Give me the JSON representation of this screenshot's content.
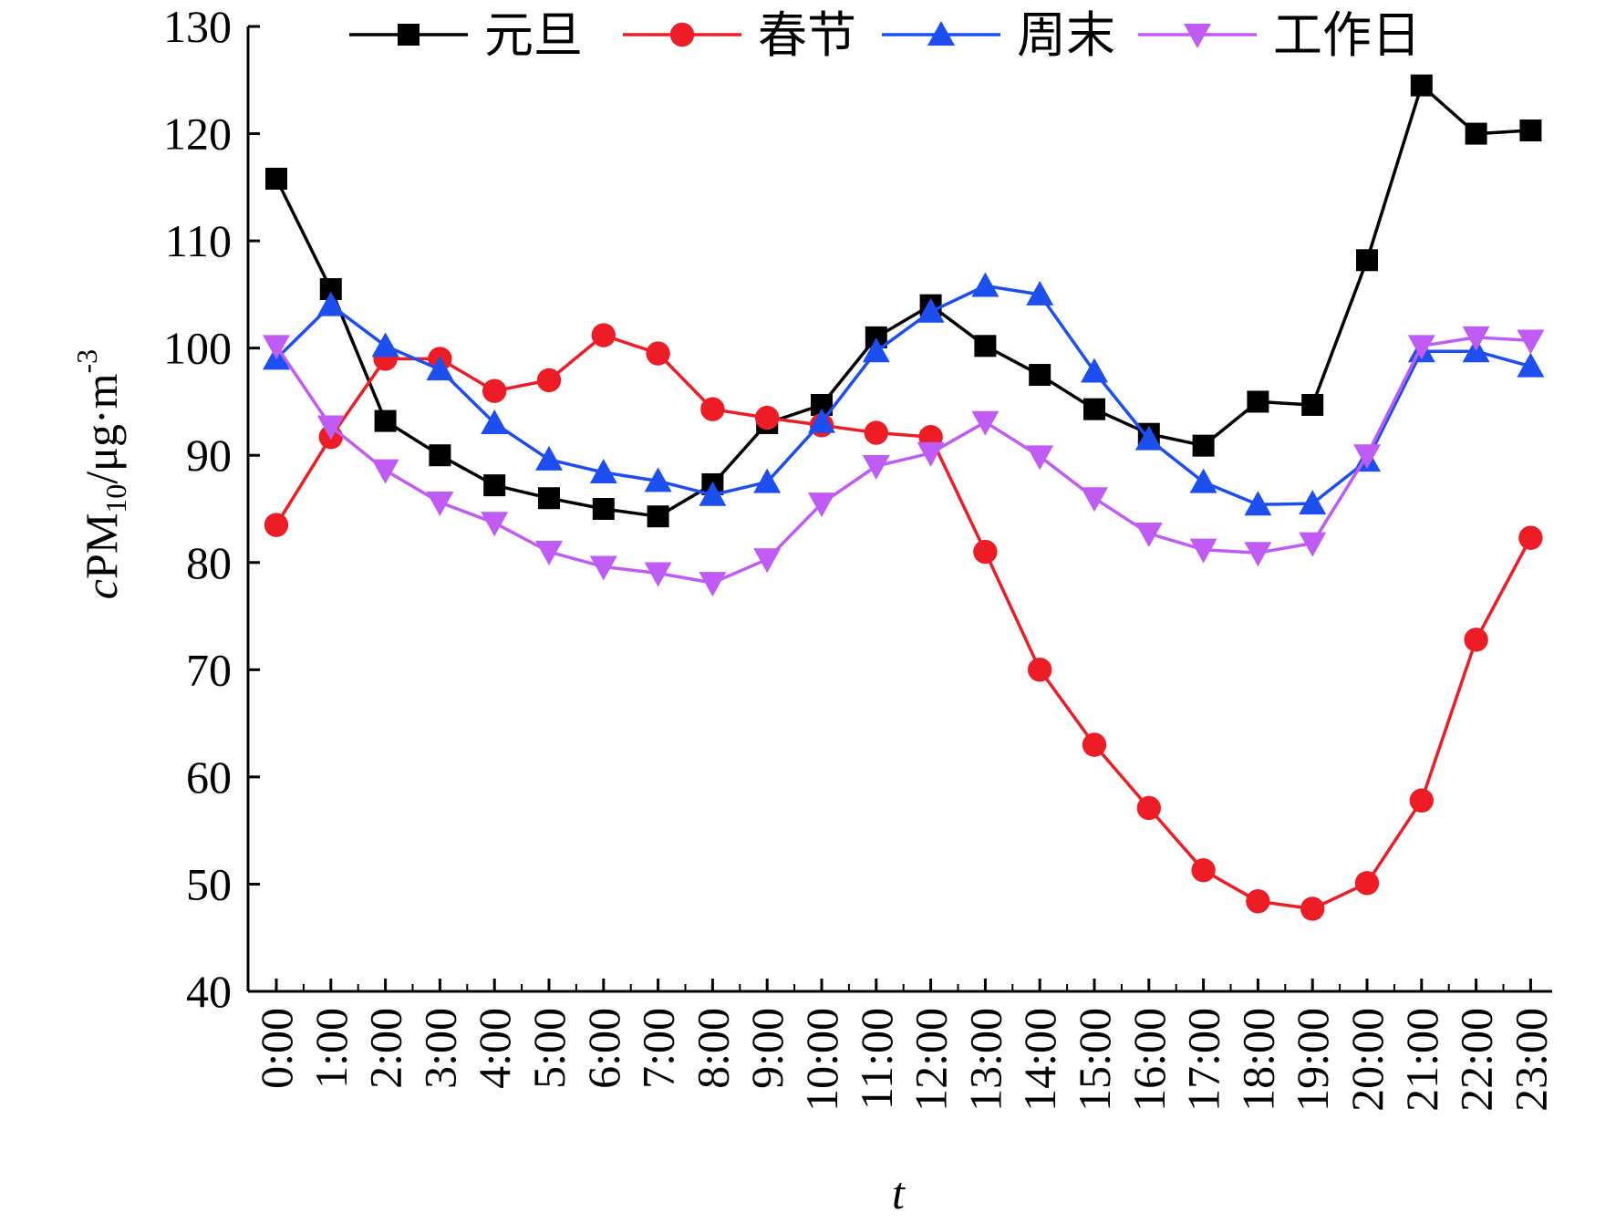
{
  "chart_data": {
    "type": "line",
    "title": "",
    "xlabel": "t",
    "ylabel_parts": {
      "prefix": "c",
      "name": "PM",
      "sub": "10",
      "unit": "/μg·m",
      "sup": "-3"
    },
    "categories": [
      "0:00",
      "1:00",
      "2:00",
      "3:00",
      "4:00",
      "5:00",
      "6:00",
      "7:00",
      "8:00",
      "9:00",
      "10:00",
      "11:00",
      "12:00",
      "13:00",
      "14:00",
      "15:00",
      "16:00",
      "17:00",
      "18:00",
      "19:00",
      "20:00",
      "21:00",
      "22:00",
      "23:00"
    ],
    "ylim": [
      40,
      130
    ],
    "yticks": [
      40,
      50,
      60,
      70,
      80,
      90,
      100,
      110,
      120,
      130
    ],
    "grid": false,
    "legend_position": "top",
    "series": [
      {
        "name": "元旦",
        "color": "#000000",
        "marker": "square",
        "values": [
          115.8,
          105.5,
          93.2,
          90.0,
          87.2,
          86.0,
          85.0,
          84.3,
          87.3,
          93.0,
          94.7,
          101.0,
          104.0,
          100.2,
          97.5,
          94.3,
          92.0,
          90.9,
          95.0,
          94.7,
          108.2,
          124.5,
          120.0,
          120.3
        ]
      },
      {
        "name": "春节",
        "color": "#ee1c25",
        "marker": "circle",
        "values": [
          83.5,
          91.7,
          99.0,
          99.0,
          96.0,
          97.0,
          101.2,
          99.5,
          94.3,
          93.5,
          92.8,
          92.1,
          91.7,
          81.0,
          70.0,
          63.0,
          57.1,
          51.3,
          48.4,
          47.7,
          50.1,
          57.8,
          72.8,
          82.3
        ]
      },
      {
        "name": "周末",
        "color": "#1c4ef0",
        "marker": "triangle-up",
        "values": [
          99.0,
          104.0,
          100.2,
          98.0,
          93.0,
          89.6,
          88.4,
          87.6,
          86.3,
          87.5,
          93.1,
          99.7,
          103.4,
          105.8,
          105.0,
          97.8,
          91.5,
          87.5,
          85.4,
          85.5,
          89.5,
          99.7,
          99.7,
          98.3
        ]
      },
      {
        "name": "工作日",
        "color": "#c05cf5",
        "marker": "triangle-down",
        "values": [
          100.2,
          92.7,
          88.6,
          85.6,
          83.7,
          81.0,
          79.6,
          79.0,
          78.1,
          80.3,
          85.5,
          89.0,
          90.2,
          93.1,
          89.9,
          86.0,
          82.7,
          81.2,
          80.9,
          81.8,
          90.0,
          100.2,
          101.0,
          100.7
        ]
      }
    ]
  }
}
